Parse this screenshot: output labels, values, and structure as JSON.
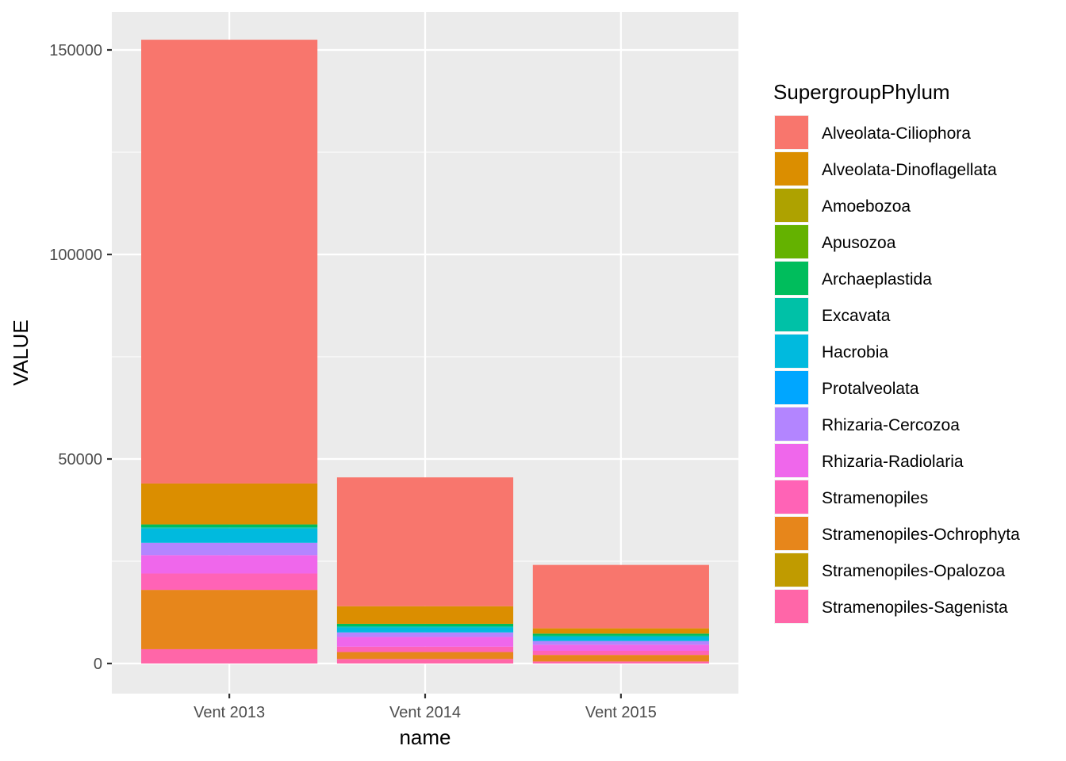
{
  "chart_data": {
    "type": "bar",
    "stacked": true,
    "xlabel": "name",
    "ylabel": "VALUE",
    "ylim": [
      -7000,
      160000
    ],
    "yticks": [
      0,
      50000,
      100000,
      150000
    ],
    "ytick_labels": [
      "0",
      "50000",
      "100000",
      "150000"
    ],
    "grid": true,
    "legend_title": "SupergroupPhylum",
    "legend_position": "right",
    "categories": [
      "Vent 2013",
      "Vent 2014",
      "Vent 2015"
    ],
    "series": [
      {
        "name": "Alveolata-Ciliophora",
        "color": "#F8766D",
        "values": [
          108500,
          31500,
          15500
        ]
      },
      {
        "name": "Alveolata-Dinoflagellata",
        "color": "#DB8E00",
        "values": [
          10000,
          4300,
          1300
        ]
      },
      {
        "name": "Amoebozoa",
        "color": "#AEA200",
        "values": [
          0,
          0,
          0
        ]
      },
      {
        "name": "Apusozoa",
        "color": "#64B200",
        "values": [
          0,
          0,
          0
        ]
      },
      {
        "name": "Archaeplastida",
        "color": "#00BD5C",
        "values": [
          700,
          600,
          500
        ]
      },
      {
        "name": "Excavata",
        "color": "#00C1A7",
        "values": [
          300,
          300,
          300
        ]
      },
      {
        "name": "Hacrobia",
        "color": "#00BADE",
        "values": [
          3500,
          1200,
          1000
        ]
      },
      {
        "name": "Protalveolata",
        "color": "#00A6FF",
        "values": [
          0,
          0,
          0
        ]
      },
      {
        "name": "Rhizaria-Cercozoa",
        "color": "#B385FF",
        "values": [
          3000,
          1100,
          900
        ]
      },
      {
        "name": "Rhizaria-Radiolaria",
        "color": "#EF67EB",
        "values": [
          4500,
          2400,
          1500
        ]
      },
      {
        "name": "Stramenopiles",
        "color": "#FF63B6",
        "values": [
          4000,
          1300,
          1000
        ]
      },
      {
        "name": "Stramenopiles-Ochrophyta",
        "color": "#E7861B",
        "values": [
          14500,
          1700,
          1600
        ]
      },
      {
        "name": "Stramenopiles-Opalozoa",
        "color": "#C09B00",
        "values": [
          0,
          0,
          0
        ]
      },
      {
        "name": "Stramenopiles-Sagenista",
        "color": "#FF66A8",
        "values": [
          3500,
          1100,
          500
        ]
      }
    ]
  }
}
